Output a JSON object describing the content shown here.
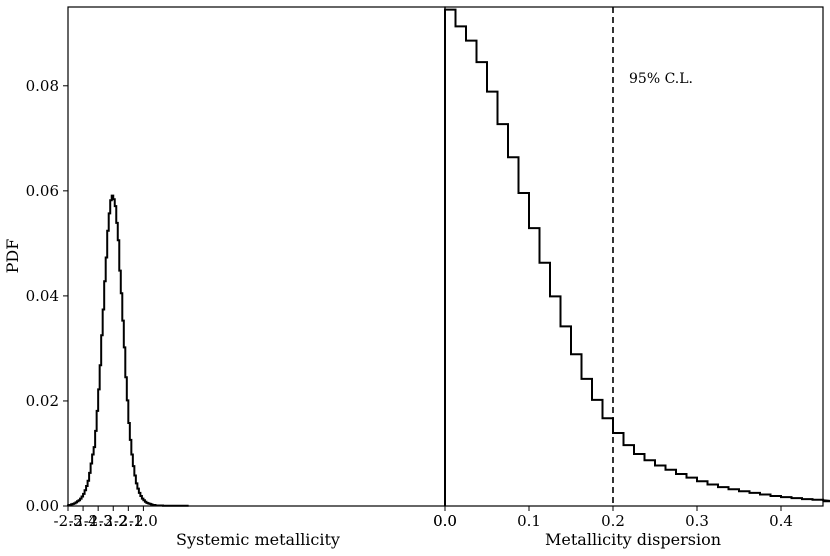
{
  "chart_data": {
    "type": "histogram",
    "ylabel": "PDF",
    "ylim": [
      0.0,
      0.095
    ],
    "yticks": [
      "0.00",
      "0.02",
      "0.04",
      "0.06",
      "0.08"
    ],
    "panels": [
      {
        "name": "left",
        "xlabel": "Systemic metallicity",
        "xlim": [
          -2.5,
          0.0
        ],
        "xticks": [
          "-2.5",
          "-2.4",
          "-2.3",
          "-2.2",
          "-2.1",
          "-2.0",
          "0.0"
        ],
        "xtick_values": [
          -2.5,
          -2.4,
          -2.3,
          -2.2,
          -2.1,
          -2.0,
          0.0
        ],
        "bin_start": -2.5,
        "bin_width": 0.01,
        "values": [
          0.0001,
          0.0002,
          0.0003,
          0.0004,
          0.0005,
          0.0007,
          0.0009,
          0.0011,
          0.0014,
          0.0018,
          0.0023,
          0.003,
          0.0038,
          0.0048,
          0.0063,
          0.0081,
          0.0098,
          0.0112,
          0.0143,
          0.0181,
          0.0222,
          0.0268,
          0.0325,
          0.0374,
          0.0428,
          0.0473,
          0.0524,
          0.0557,
          0.0582,
          0.0591,
          0.0584,
          0.0571,
          0.0539,
          0.0506,
          0.0448,
          0.0405,
          0.0353,
          0.0302,
          0.0245,
          0.0201,
          0.0158,
          0.0126,
          0.0098,
          0.0076,
          0.0058,
          0.0043,
          0.0033,
          0.0025,
          0.0019,
          0.0014,
          0.0011,
          0.0008,
          0.0006,
          0.0005,
          0.0004,
          0.0003,
          0.0002,
          0.0002,
          0.0001,
          0.0001,
          0.0001,
          0.0001,
          0.0001,
          5e-05,
          5e-05,
          5e-05,
          5e-05,
          5e-05,
          5e-05,
          5e-05,
          5e-05,
          5e-05,
          5e-05,
          5e-05,
          5e-05,
          5e-05,
          5e-05,
          5e-05,
          5e-05,
          5e-05
        ]
      },
      {
        "name": "right",
        "xlabel": "Metallicity dispersion",
        "xlim": [
          0.0,
          0.45
        ],
        "xticks": [
          "0.0",
          "0.1",
          "0.2",
          "0.3",
          "0.4"
        ],
        "xtick_values": [
          0.0,
          0.1,
          0.2,
          0.3,
          0.4
        ],
        "bin_start": 0.0,
        "bin_width": 0.0125,
        "values": [
          0.0945,
          0.0913,
          0.0886,
          0.0845,
          0.0789,
          0.0727,
          0.0664,
          0.0596,
          0.0529,
          0.0463,
          0.0399,
          0.0342,
          0.0289,
          0.0242,
          0.0202,
          0.0167,
          0.0139,
          0.0116,
          0.0099,
          0.0087,
          0.0077,
          0.0069,
          0.0061,
          0.0054,
          0.0047,
          0.0041,
          0.0036,
          0.0032,
          0.0028,
          0.0025,
          0.0022,
          0.0019,
          0.0017,
          0.0015,
          0.0013,
          0.0012,
          0.0011,
          0.0009
        ]
      }
    ],
    "reference_line": {
      "x": 0.2,
      "style": "dashed",
      "label": "95% C.L."
    }
  }
}
